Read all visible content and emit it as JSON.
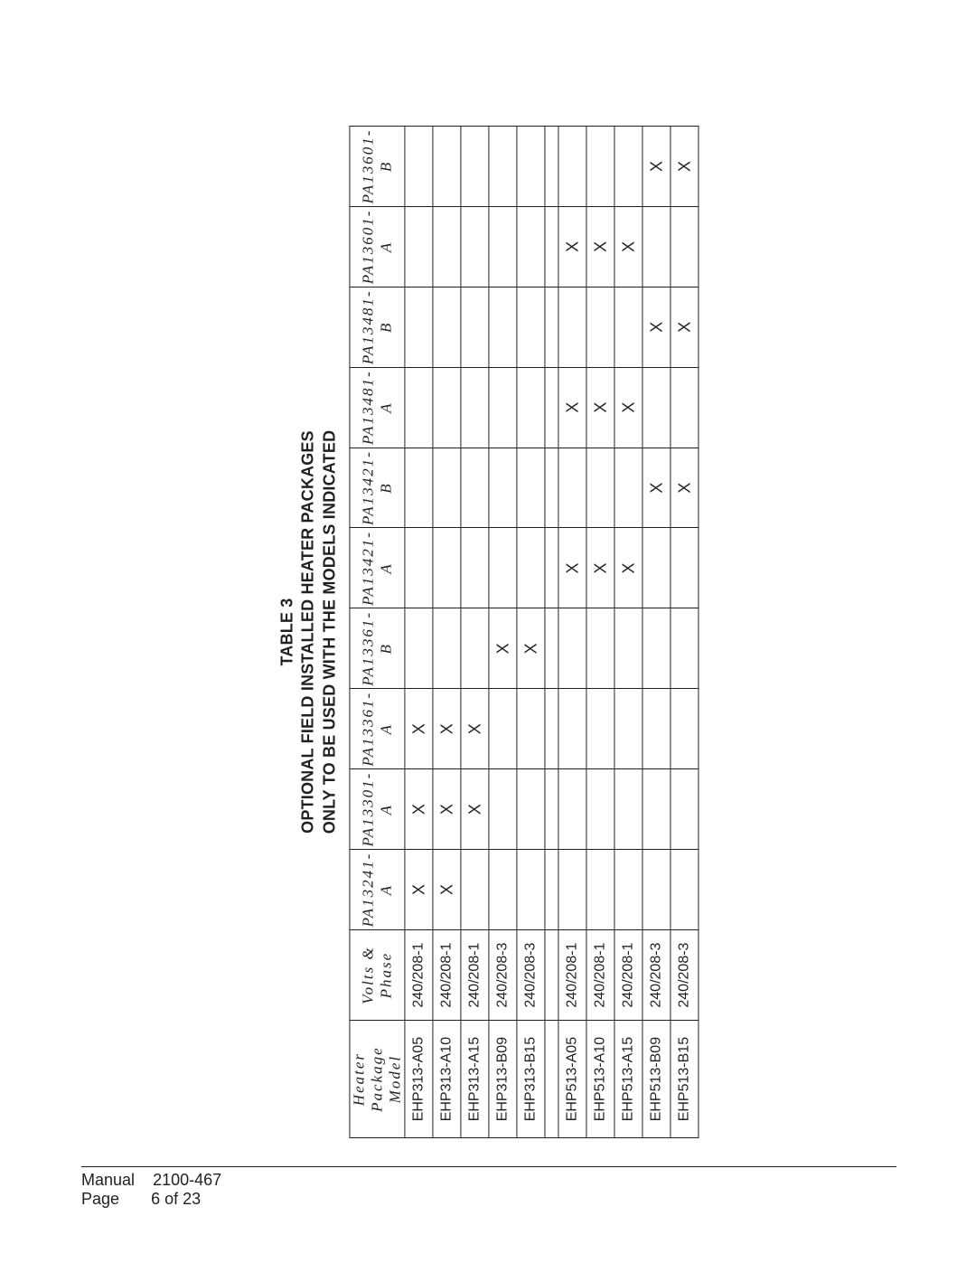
{
  "title": {
    "line1": "TABLE  3",
    "line2": "OPTIONAL FIELD INSTALLED HEATER PACKAGES",
    "line3": "ONLY TO BE USED WITH THE  MODELS INDICATED"
  },
  "columns": {
    "model_h1": "Heater Package",
    "model_h2": "Model",
    "volts_h1": "Volts &",
    "volts_h2": "Phase",
    "pkg": [
      "PA13241-A",
      "PA13301-A",
      "PA13361-A",
      "PA13361-B",
      "PA13421-A",
      "PA13421-B",
      "PA13481-A",
      "PA13481-B",
      "PA13601-A",
      "PA13601-B"
    ]
  },
  "rows": [
    {
      "model": "EHP313-A05",
      "volts": "240/208-1",
      "marks": [
        "X",
        "X",
        "X",
        "",
        "",
        "",
        "",
        "",
        "",
        ""
      ]
    },
    {
      "model": "EHP313-A10",
      "volts": "240/208-1",
      "marks": [
        "X",
        "X",
        "X",
        "",
        "",
        "",
        "",
        "",
        "",
        ""
      ]
    },
    {
      "model": "EHP313-A15",
      "volts": "240/208-1",
      "marks": [
        "",
        "X",
        "X",
        "",
        "",
        "",
        "",
        "",
        "",
        ""
      ]
    },
    {
      "model": "EHP313-B09",
      "volts": "240/208-3",
      "marks": [
        "",
        "",
        "",
        "X",
        "",
        "",
        "",
        "",
        "",
        ""
      ]
    },
    {
      "model": "EHP313-B15",
      "volts": "240/208-3",
      "marks": [
        "",
        "",
        "",
        "X",
        "",
        "",
        "",
        "",
        "",
        ""
      ]
    },
    null,
    {
      "model": "EHP513-A05",
      "volts": "240/208-1",
      "marks": [
        "",
        "",
        "",
        "",
        "X",
        "",
        "X",
        "",
        "X",
        ""
      ]
    },
    {
      "model": "EHP513-A10",
      "volts": "240/208-1",
      "marks": [
        "",
        "",
        "",
        "",
        "X",
        "",
        "X",
        "",
        "X",
        ""
      ]
    },
    {
      "model": "EHP513-A15",
      "volts": "240/208-1",
      "marks": [
        "",
        "",
        "",
        "",
        "X",
        "",
        "X",
        "",
        "X",
        ""
      ]
    },
    {
      "model": "EHP513-B09",
      "volts": "240/208-3",
      "marks": [
        "",
        "",
        "",
        "",
        "",
        "X",
        "",
        "X",
        "",
        "X"
      ]
    },
    {
      "model": "EHP513-B15",
      "volts": "240/208-3",
      "marks": [
        "",
        "",
        "",
        "",
        "",
        "X",
        "",
        "X",
        "",
        "X"
      ]
    }
  ],
  "footer": {
    "manual_label": "Manual",
    "manual_value": "2100-467",
    "page_label": "Page",
    "page_value": "6 of 23"
  },
  "style": {
    "text_color": "#231f20",
    "border_color": "#231f20",
    "background": "#ffffff"
  }
}
